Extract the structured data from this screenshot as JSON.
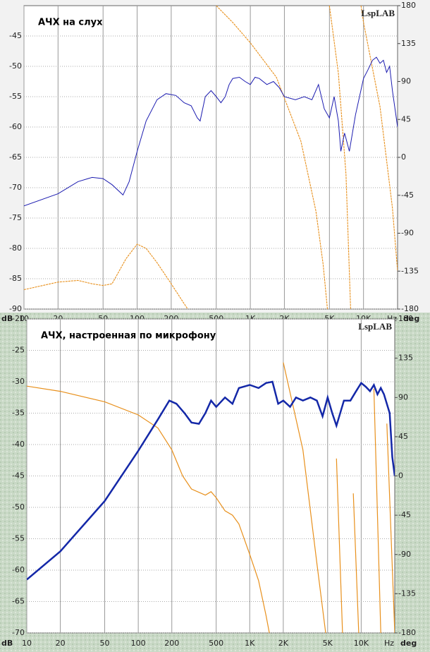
{
  "chart_data": [
    {
      "type": "line",
      "title": "АЧХ на слух",
      "watermark": "LspLAB",
      "x_label": "Hz",
      "y_label": "dB",
      "y2_label": "deg",
      "xscale": "log",
      "xlim": [
        10,
        20000
      ],
      "ylim": [
        -90,
        -40
      ],
      "y2lim": [
        -180,
        180
      ],
      "grid": true,
      "xticks": [
        10,
        20,
        50,
        100,
        200,
        500,
        {
          "value": 1000,
          "label": "1K"
        },
        {
          "value": 2000,
          "label": "2K"
        },
        {
          "value": 5000,
          "label": "5K"
        },
        {
          "value": 10000,
          "label": "10K"
        }
      ],
      "yticks": [
        -45,
        -50,
        -55,
        -60,
        -65,
        -70,
        -75,
        -80,
        -85,
        -90
      ],
      "y2ticks": [
        180,
        135,
        90,
        45,
        0,
        -45,
        -90,
        -135,
        -180
      ],
      "series": [
        {
          "color": "#1c1cb0",
          "x": [
            10,
            20,
            30,
            40,
            50,
            60,
            75,
            85,
            100,
            120,
            150,
            180,
            220,
            260,
            300,
            340,
            360,
            400,
            450,
            500,
            550,
            600,
            650,
            700,
            800,
            900,
            1000,
            1100,
            1200,
            1400,
            1600,
            1800,
            2000,
            2500,
            3000,
            3500,
            4000,
            4500,
            5000,
            5500,
            6000,
            6300,
            6800,
            7500,
            8500,
            10000,
            11000,
            12000,
            13000,
            14000,
            15000,
            16000,
            17000,
            18000,
            20000
          ],
          "values": [
            -73,
            -71,
            -69,
            -68.3,
            -68.5,
            -69.5,
            -71.2,
            -69,
            -64,
            -59,
            -55.5,
            -54.5,
            -54.8,
            -56,
            -56.5,
            -58.5,
            -59,
            -55,
            -54,
            -55,
            -56,
            -55,
            -53,
            -52,
            -51.8,
            -52.5,
            -53,
            -51.8,
            -52,
            -53,
            -52.5,
            -53.5,
            -55,
            -55.5,
            -55,
            -55.5,
            -53,
            -57,
            -58.5,
            -55,
            -59,
            -64,
            -61,
            -64,
            -58,
            -52,
            -50.5,
            -49,
            -48.5,
            -49.5,
            -49,
            -51,
            -50,
            -54,
            -60
          ]
        },
        {
          "color": "#e8901c",
          "axis": "y2",
          "x": [
            10,
            20,
            30,
            40,
            50,
            60,
            80,
            100,
            120,
            150,
            200,
            250,
            280,
            290,
            500,
            700,
            1000,
            1700,
            2800,
            3800,
            4400,
            4800,
            4900,
            5000,
            6000,
            7000,
            7700,
            7800,
            9500,
            10000,
            14000,
            18000,
            20000
          ],
          "values": [
            -157,
            -148,
            -146,
            -150,
            -152,
            -150,
            -120,
            -103,
            -108,
            -125,
            -150,
            -170,
            -180,
            null,
            180,
            160,
            136,
            95,
            19,
            -64,
            -127,
            -180,
            null,
            180,
            100,
            -20,
            -180,
            null,
            180,
            160,
            60,
            -60,
            -135
          ]
        }
      ]
    },
    {
      "type": "line",
      "title": "АЧХ, настроенная по микрофону",
      "watermark": "LspLAB",
      "x_label": "Hz",
      "y_label": "dB",
      "y2_label": "deg",
      "xscale": "log",
      "xlim": [
        10,
        20000
      ],
      "ylim": [
        -70,
        -20
      ],
      "y2lim": [
        -180,
        180
      ],
      "grid": true,
      "xticks": [
        10,
        20,
        50,
        100,
        200,
        500,
        {
          "value": 1000,
          "label": "1K"
        },
        {
          "value": 2000,
          "label": "2K"
        },
        {
          "value": 5000,
          "label": "5K"
        },
        {
          "value": 10000,
          "label": "10K"
        }
      ],
      "yticks": [
        -20,
        -25,
        -30,
        -35,
        -40,
        -45,
        -50,
        -55,
        -60,
        -65,
        -70
      ],
      "y2ticks": [
        180,
        135,
        90,
        45,
        0,
        -45,
        -90,
        -135,
        -180
      ],
      "series": [
        {
          "color": "#1428a8",
          "x": [
            10,
            20,
            50,
            100,
            150,
            190,
            220,
            260,
            300,
            350,
            400,
            450,
            500,
            600,
            700,
            800,
            1000,
            1200,
            1400,
            1600,
            1800,
            2000,
            2300,
            2600,
            3000,
            3500,
            4000,
            4500,
            5000,
            5500,
            6000,
            7000,
            8000,
            9000,
            10000,
            11000,
            12000,
            13000,
            14000,
            15000,
            16000,
            18000,
            19000,
            20000
          ],
          "values": [
            -61.5,
            -57,
            -49,
            -41,
            -36,
            -33,
            -33.5,
            -35,
            -36.5,
            -36.7,
            -35,
            -33,
            -34,
            -32.5,
            -33.5,
            -31,
            -30.5,
            -31,
            -30.2,
            -30,
            -33.5,
            -33,
            -34,
            -32.5,
            -33,
            -32.5,
            -33,
            -35.5,
            -32.5,
            -35,
            -37,
            -33,
            -33,
            -31.5,
            -30.2,
            -30.8,
            -31.5,
            -30.5,
            -32,
            -31,
            -32,
            -35,
            -42,
            -45
          ]
        },
        {
          "color": "#e8901c",
          "axis": "y2",
          "x": [
            10,
            20,
            50,
            100,
            150,
            200,
            250,
            300,
            400,
            450,
            500,
            600,
            700,
            800,
            1000,
            1200,
            1400,
            1500,
            1550,
            2000,
            3000,
            4000,
            4800,
            4850,
            6000,
            6800,
            6850,
            8500,
            9500,
            9600,
            13000,
            15000,
            15500,
            17000,
            20000
          ],
          "values": [
            103,
            97,
            85,
            70,
            55,
            30,
            0,
            -15,
            -22,
            -18,
            -25,
            -40,
            -45,
            -55,
            -90,
            -120,
            -160,
            -180,
            null,
            130,
            30,
            -100,
            -180,
            null,
            20,
            -180,
            null,
            -20,
            -180,
            null,
            100,
            -180,
            null,
            60,
            -180
          ]
        }
      ]
    }
  ]
}
